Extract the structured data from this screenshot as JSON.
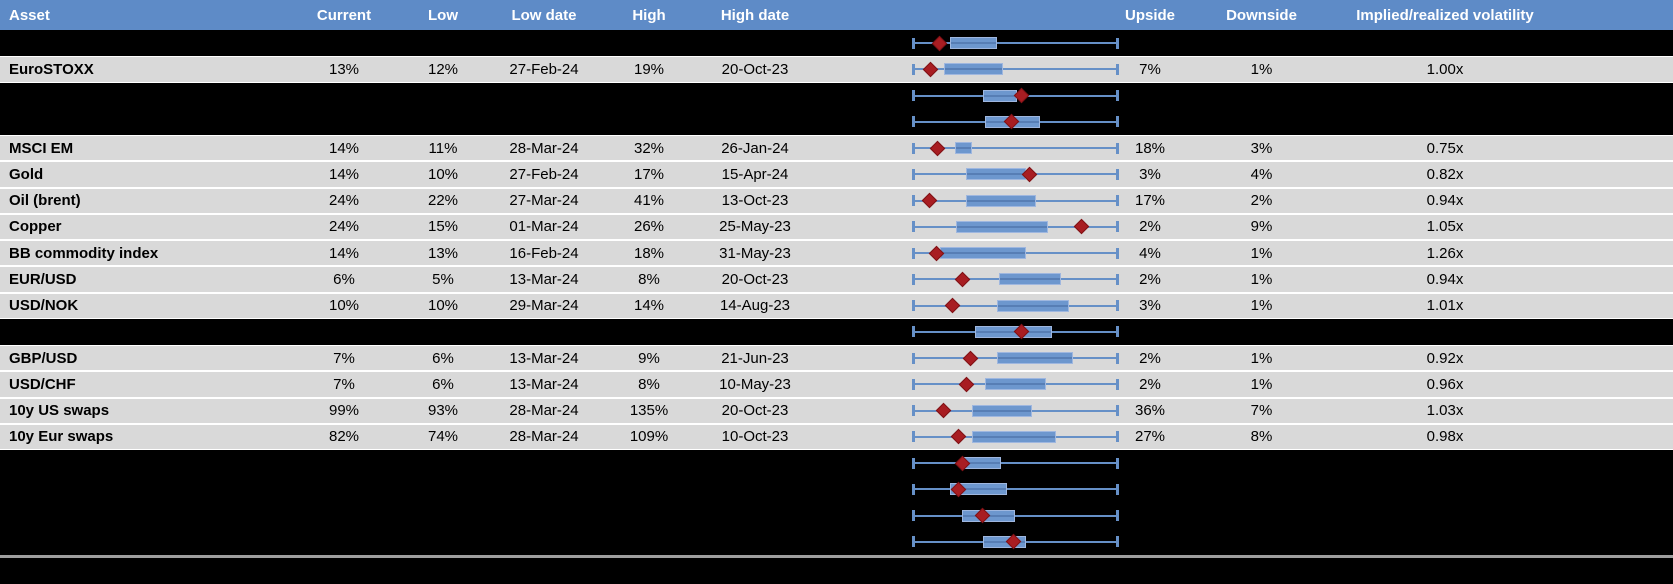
{
  "colors": {
    "header_bg": "#5E8BC7",
    "header_text": "#FFFFFF",
    "row_bg": "#D9D9D9",
    "spacer_bg": "#000000",
    "gridline": "#FFFFFF",
    "whisker": "#6690C7",
    "box_fill": "#6D97CE",
    "box_border": "#9FB7DF",
    "marker_fill": "#A81D22",
    "separator_line": "#9E9E9E"
  },
  "header": {
    "asset": "Asset",
    "current": "Current",
    "low": "Low",
    "low_date": "Low date",
    "high": "High",
    "high_date": "High date",
    "upside": "Upside",
    "downside": "Downside",
    "implied_realized": "Implied/realized volatility"
  },
  "chart_data": {
    "type": "table",
    "note_visible_structure": "each row shows a horizontal min-max whisker with interquartile box and a dark-red diamond marking current level, normalized 0-1 across the plot width"
  },
  "rows": [
    {
      "type": "spacer",
      "plot": {
        "box_lo": 0.18,
        "box_hi": 0.41,
        "marker": 0.13
      }
    },
    {
      "type": "asset",
      "name": "EuroSTOXX",
      "current": "13%",
      "low": "12%",
      "low_date": "27-Feb-24",
      "high": "19%",
      "high_date": "20-Oct-23",
      "upside": "7%",
      "downside": "1%",
      "impl_real": "1.00x",
      "plot": {
        "box_lo": 0.15,
        "box_hi": 0.44,
        "marker": 0.085
      }
    },
    {
      "type": "spacer",
      "plot": {
        "box_lo": 0.34,
        "box_hi": 0.51,
        "marker": 0.53
      }
    },
    {
      "type": "spacer",
      "plot": {
        "box_lo": 0.35,
        "box_hi": 0.62,
        "marker": 0.48
      }
    },
    {
      "type": "asset",
      "name": "MSCI EM",
      "current": "14%",
      "low": "11%",
      "low_date": "28-Mar-24",
      "high": "32%",
      "high_date": "26-Jan-24",
      "upside": "18%",
      "downside": "3%",
      "impl_real": "0.75x",
      "plot": {
        "box_lo": 0.205,
        "box_hi": 0.29,
        "marker": 0.12
      }
    },
    {
      "type": "asset",
      "name": "Gold",
      "current": "14%",
      "low": "10%",
      "low_date": "27-Feb-24",
      "high": "17%",
      "high_date": "15-Apr-24",
      "upside": "3%",
      "downside": "4%",
      "impl_real": "0.82x",
      "plot": {
        "box_lo": 0.26,
        "box_hi": 0.55,
        "marker": 0.57
      }
    },
    {
      "type": "asset",
      "name": "Oil (brent)",
      "current": "24%",
      "low": "22%",
      "low_date": "27-Mar-24",
      "high": "41%",
      "high_date": "13-Oct-23",
      "upside": "17%",
      "downside": "2%",
      "impl_real": "0.94x",
      "plot": {
        "box_lo": 0.26,
        "box_hi": 0.6,
        "marker": 0.08
      }
    },
    {
      "type": "asset",
      "name": "Copper",
      "current": "24%",
      "low": "15%",
      "low_date": "01-Mar-24",
      "high": "26%",
      "high_date": "25-May-23",
      "upside": "2%",
      "downside": "9%",
      "impl_real": "1.05x",
      "plot": {
        "box_lo": 0.21,
        "box_hi": 0.66,
        "marker": 0.82
      }
    },
    {
      "type": "asset",
      "name": "BB commodity index",
      "current": "14%",
      "low": "13%",
      "low_date": "16-Feb-24",
      "high": "18%",
      "high_date": "31-May-23",
      "upside": "4%",
      "downside": "1%",
      "impl_real": "1.26x",
      "plot": {
        "box_lo": 0.13,
        "box_hi": 0.55,
        "marker": 0.115
      }
    },
    {
      "type": "asset",
      "name": "EUR/USD",
      "current": "6%",
      "low": "5%",
      "low_date": "13-Mar-24",
      "high": "8%",
      "high_date": "20-Oct-23",
      "upside": "2%",
      "downside": "1%",
      "impl_real": "0.94x",
      "plot": {
        "box_lo": 0.42,
        "box_hi": 0.72,
        "marker": 0.24
      }
    },
    {
      "type": "asset",
      "name": "USD/NOK",
      "current": "10%",
      "low": "10%",
      "low_date": "29-Mar-24",
      "high": "14%",
      "high_date": "14-Aug-23",
      "upside": "3%",
      "downside": "1%",
      "impl_real": "1.01x",
      "plot": {
        "box_lo": 0.41,
        "box_hi": 0.76,
        "marker": 0.19
      }
    },
    {
      "type": "spacer",
      "plot": {
        "box_lo": 0.3,
        "box_hi": 0.68,
        "marker": 0.53
      }
    },
    {
      "type": "asset",
      "name": "GBP/USD",
      "current": "7%",
      "low": "6%",
      "low_date": "13-Mar-24",
      "high": "9%",
      "high_date": "21-Jun-23",
      "upside": "2%",
      "downside": "1%",
      "impl_real": "0.92x",
      "plot": {
        "box_lo": 0.41,
        "box_hi": 0.78,
        "marker": 0.28
      }
    },
    {
      "type": "asset",
      "name": "USD/CHF",
      "current": "7%",
      "low": "6%",
      "low_date": "13-Mar-24",
      "high": "8%",
      "high_date": "10-May-23",
      "upside": "2%",
      "downside": "1%",
      "impl_real": "0.96x",
      "plot": {
        "box_lo": 0.35,
        "box_hi": 0.65,
        "marker": 0.26
      }
    },
    {
      "type": "asset",
      "name": "10y US swaps",
      "current": "99%",
      "low": "93%",
      "low_date": "28-Mar-24",
      "high": "135%",
      "high_date": "20-Oct-23",
      "upside": "36%",
      "downside": "7%",
      "impl_real": "1.03x",
      "plot": {
        "box_lo": 0.29,
        "box_hi": 0.58,
        "marker": 0.15
      }
    },
    {
      "type": "asset",
      "name": "10y Eur swaps",
      "current": "82%",
      "low": "74%",
      "low_date": "28-Mar-24",
      "high": "109%",
      "high_date": "10-Oct-23",
      "upside": "27%",
      "downside": "8%",
      "impl_real": "0.98x",
      "plot": {
        "box_lo": 0.29,
        "box_hi": 0.7,
        "marker": 0.22
      }
    },
    {
      "type": "spacer",
      "plot": {
        "box_lo": 0.24,
        "box_hi": 0.43,
        "marker": 0.24
      }
    },
    {
      "type": "spacer",
      "plot": {
        "box_lo": 0.18,
        "box_hi": 0.46,
        "marker": 0.22
      }
    },
    {
      "type": "spacer",
      "plot": {
        "box_lo": 0.24,
        "box_hi": 0.5,
        "marker": 0.34
      }
    },
    {
      "type": "spacer",
      "plot": {
        "box_lo": 0.34,
        "box_hi": 0.55,
        "marker": 0.49
      }
    }
  ]
}
